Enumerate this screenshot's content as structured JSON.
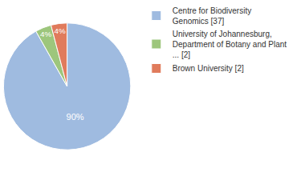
{
  "chart_data": {
    "type": "pie",
    "categories": [
      "Centre for Biodiversity Genomics [37]",
      "University of Johannesburg, Department of Botany and Plant ... [2]",
      "Brown University [2]"
    ],
    "values": [
      90,
      4,
      4
    ],
    "value_labels": [
      "90%",
      "4%",
      "4%"
    ],
    "colors": [
      "#9fbbe0",
      "#9dc67c",
      "#e07b5c"
    ],
    "data_labels": true,
    "legend": "upper right"
  }
}
